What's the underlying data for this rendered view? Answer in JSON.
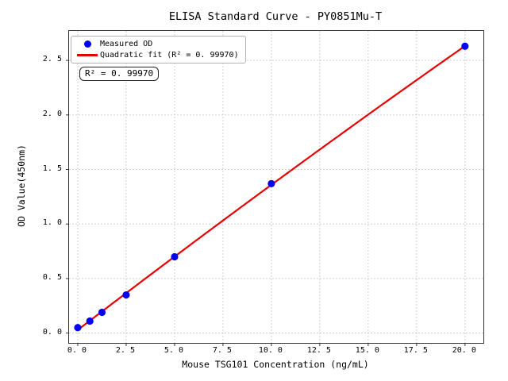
{
  "chart_data": {
    "type": "scatter",
    "title": "ELISA Standard Curve - PY0851Mu-T",
    "xlabel": "Mouse TSG101 Concentration (ng/mL)",
    "ylabel": "OD Value(450nm)",
    "x": [
      0,
      0.625,
      1.25,
      2.5,
      5,
      10,
      20
    ],
    "y": [
      0.05,
      0.11,
      0.19,
      0.35,
      0.7,
      1.37,
      2.63
    ],
    "fit": "quadratic",
    "fit_range": [
      0,
      20
    ],
    "r_squared": 0.9997,
    "annotation": "R² = 0. 99970",
    "legend_labels": [
      "Measured OD",
      "Quadratic fit (R² = 0. 99970)"
    ],
    "legend_position": "upper left",
    "point_color": "#0000ee",
    "line_color": "#e60000",
    "x_ticks": [
      0,
      2.5,
      5,
      7.5,
      10,
      12.5,
      15,
      17.5,
      20
    ],
    "x_tick_labels": [
      "0. 0",
      "2. 5",
      "5. 0",
      "7. 5",
      "10. 0",
      "12. 5",
      "15. 0",
      "17. 5",
      "20. 0"
    ],
    "y_ticks": [
      0,
      0.5,
      1,
      1.5,
      2,
      2.5
    ],
    "y_tick_labels": [
      "0. 0",
      "0. 5",
      "1. 0",
      "1. 5",
      "2. 0",
      "2. 5"
    ],
    "xlim": [
      -0.45,
      20.95
    ],
    "ylim": [
      -0.09,
      2.77
    ],
    "grid": true
  }
}
